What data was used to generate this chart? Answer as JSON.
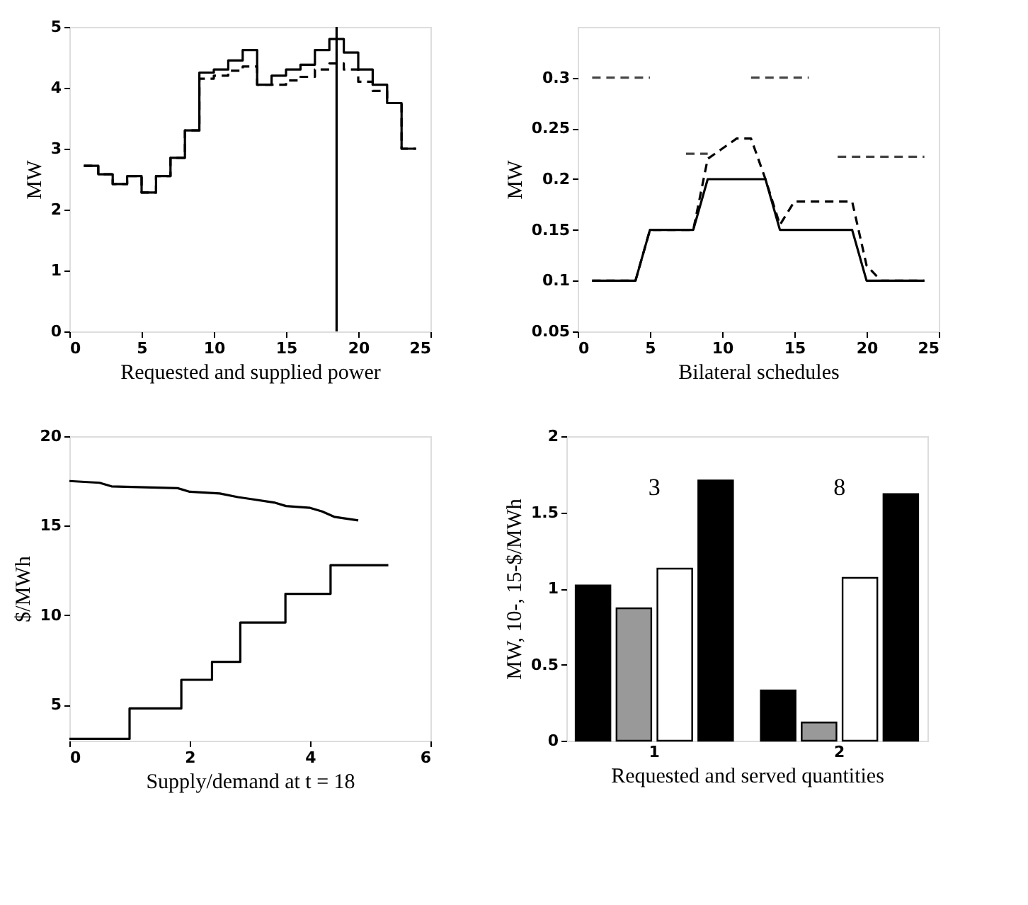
{
  "chart_data": [
    {
      "type": "step",
      "xlabel": "Requested and supplied power",
      "ylabel": "MW",
      "xlim": [
        0,
        25
      ],
      "ylim": [
        0,
        5
      ],
      "xticks": [
        0,
        5,
        10,
        15,
        20,
        25
      ],
      "yticks": [
        0,
        1,
        2,
        3,
        4,
        5
      ],
      "grid": false,
      "x": [
        1,
        2,
        3,
        4,
        5,
        6,
        7,
        8,
        9,
        10,
        11,
        12,
        13,
        14,
        15,
        16,
        17,
        18,
        19,
        20,
        21,
        22,
        23,
        24
      ],
      "series": [
        {
          "color": "#000000",
          "line_style": "solid",
          "values": [
            2.72,
            2.58,
            2.42,
            2.55,
            2.28,
            2.55,
            2.85,
            3.3,
            4.25,
            4.3,
            4.45,
            4.62,
            4.05,
            4.2,
            4.3,
            4.38,
            4.62,
            4.8,
            4.58,
            4.3,
            4.05,
            3.75,
            3.0,
            3.0
          ]
        },
        {
          "color": "#000000",
          "line_style": "dashed",
          "values": [
            2.72,
            2.58,
            2.42,
            2.55,
            2.28,
            2.55,
            2.85,
            3.3,
            4.15,
            4.2,
            4.28,
            4.35,
            4.05,
            4.05,
            4.12,
            4.18,
            4.3,
            4.4,
            4.3,
            4.1,
            3.95,
            3.75,
            3.0,
            3.0
          ]
        }
      ],
      "ref_lines": [
        {
          "axis": "x",
          "value": 18.5,
          "color": "#000000",
          "line_style": "solid"
        }
      ]
    },
    {
      "type": "line",
      "xlabel": "Bilateral schedules",
      "ylabel": "MW",
      "xlim": [
        0,
        25
      ],
      "ylim": [
        0.05,
        0.35
      ],
      "xticks": [
        0,
        5,
        10,
        15,
        20,
        25
      ],
      "yticks": [
        0.05,
        0.1,
        0.15,
        0.2,
        0.25,
        0.3
      ],
      "grid": false,
      "series": [
        {
          "color": "#000000",
          "line_style": "solid",
          "x": [
            1,
            4,
            5,
            8,
            9,
            13,
            14,
            19,
            20,
            24
          ],
          "values": [
            0.1,
            0.1,
            0.15,
            0.15,
            0.2,
            0.2,
            0.15,
            0.15,
            0.1,
            0.1
          ]
        },
        {
          "color": "#000000",
          "line_style": "dashed",
          "x": [
            1,
            4,
            5,
            8,
            9,
            10,
            11,
            12,
            13,
            14,
            15,
            19,
            20,
            21,
            24
          ],
          "values": [
            0.1,
            0.1,
            0.15,
            0.15,
            0.22,
            0.23,
            0.24,
            0.24,
            0.2,
            0.155,
            0.178,
            0.178,
            0.115,
            0.1,
            0.1
          ]
        },
        {
          "color": "#444444",
          "line_style": "dashed",
          "x": [
            1,
            5,
            6,
            7.5,
            9,
            10,
            12,
            16,
            17,
            18,
            24
          ],
          "values": [
            0.3,
            0.3,
            null,
            0.225,
            0.225,
            null,
            0.3,
            0.3,
            null,
            0.222,
            0.222
          ]
        }
      ]
    },
    {
      "type": "line",
      "xlabel": "Supply/demand at t = 18",
      "ylabel": "$/MWh",
      "xlim": [
        0,
        6
      ],
      "ylim": [
        3,
        20
      ],
      "xticks": [
        0,
        2,
        4,
        6
      ],
      "yticks": [
        5,
        10,
        15,
        20
      ],
      "grid": false,
      "series": [
        {
          "color": "#000000",
          "line_style": "solid",
          "x": [
            0,
            0.5,
            0.7,
            1.8,
            2.0,
            2.5,
            2.8,
            3.0,
            3.4,
            3.6,
            4.0,
            4.2,
            4.4,
            4.6,
            4.8
          ],
          "values": [
            17.5,
            17.4,
            17.2,
            17.1,
            16.9,
            16.8,
            16.6,
            16.5,
            16.3,
            16.1,
            16.0,
            15.8,
            15.5,
            15.4,
            15.3
          ]
        },
        {
          "type": "step",
          "color": "#000000",
          "line_style": "solid",
          "x": [
            0,
            1.0,
            1.86,
            2.37,
            2.84,
            3.59,
            4.34,
            5.3
          ],
          "values": [
            3.1,
            4.8,
            6.4,
            7.4,
            9.6,
            11.2,
            12.8,
            12.8
          ]
        }
      ]
    },
    {
      "type": "bar",
      "xlabel": "Requested and served quantities",
      "ylabel": "MW, 10-, 15-$/MWh",
      "categories": [
        "1",
        "2"
      ],
      "ylim": [
        0,
        2
      ],
      "yticks": [
        0,
        0.5,
        1,
        1.5,
        2
      ],
      "grid": false,
      "series": [
        {
          "color": "#000000",
          "values": [
            1.02,
            0.33
          ]
        },
        {
          "color": "#999999",
          "values": [
            0.87,
            0.12
          ]
        },
        {
          "color": "#ffffff",
          "values": [
            1.13,
            1.07
          ]
        },
        {
          "color": "#000000",
          "values": [
            1.71,
            1.62
          ]
        }
      ],
      "annotations": [
        "3",
        "8"
      ]
    }
  ]
}
